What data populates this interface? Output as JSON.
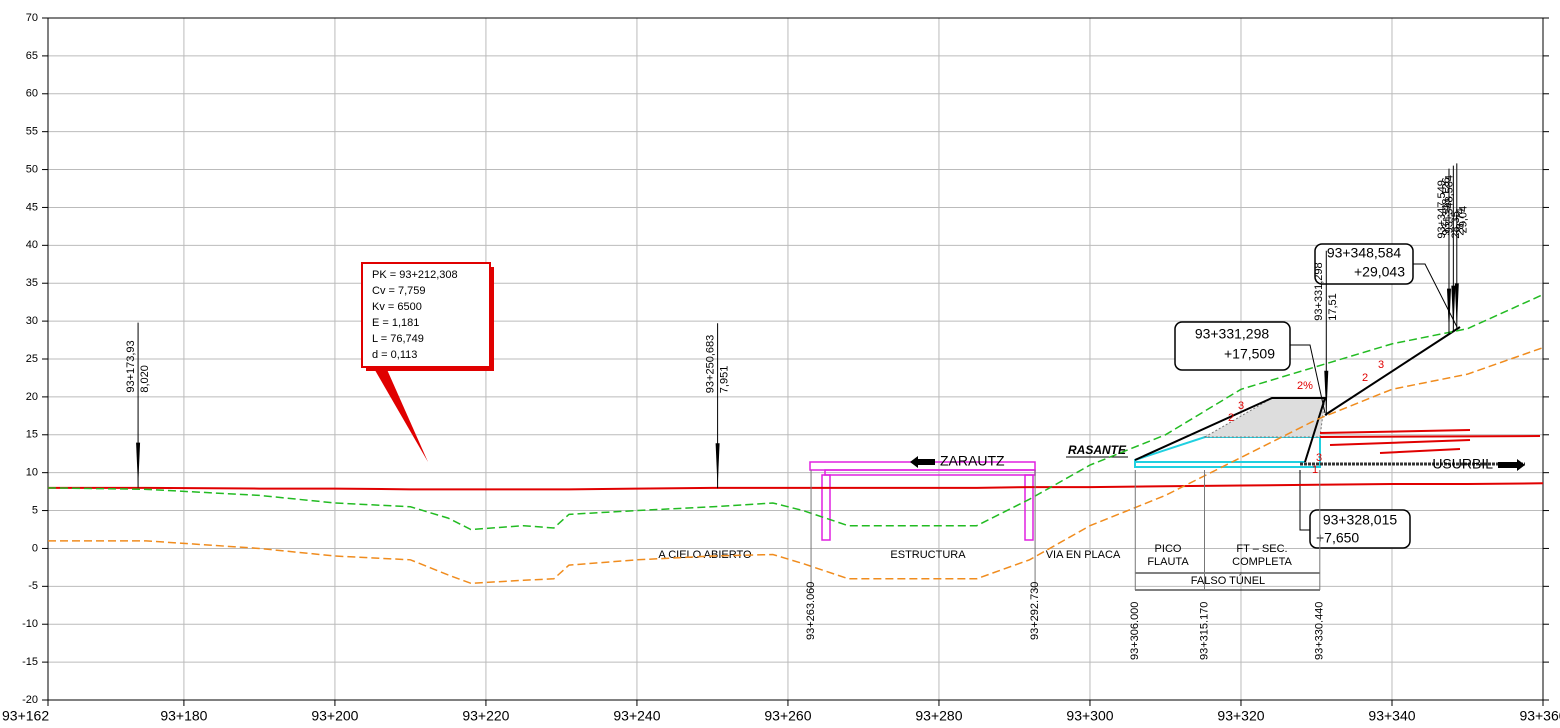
{
  "chart_data": {
    "type": "line",
    "x": [
      93162,
      93175,
      93190,
      93200,
      93210,
      93215,
      93218,
      93225,
      93229,
      93231,
      93240,
      93250,
      93258,
      93262,
      93268,
      93285,
      93292,
      93300,
      93310,
      93320,
      93330,
      93340,
      93350,
      93360
    ],
    "series": [
      {
        "color": "#e00000",
        "style": "solid",
        "values": [
          8,
          8,
          7.9,
          7.9,
          7.8,
          7.8,
          7.8,
          7.8,
          7.8,
          7.8,
          7.9,
          8,
          8,
          8,
          8,
          8,
          8.1,
          8.1,
          8.2,
          8.3,
          8.4,
          8.5,
          8.5,
          8.6
        ]
      },
      {
        "color": "#22bb22",
        "style": "dashed",
        "values": [
          8,
          7.8,
          7,
          6,
          5.5,
          4,
          2.5,
          3,
          2.7,
          4.5,
          5,
          5.5,
          6,
          5,
          3,
          3,
          6.5,
          11,
          15,
          21,
          24,
          27,
          29,
          33.5
        ]
      },
      {
        "color": "#f08c1e",
        "style": "dashed",
        "values": [
          1,
          1,
          0,
          -1,
          -1.5,
          -3.5,
          -4.6,
          -4.2,
          -4,
          -2.2,
          -1.5,
          -1,
          -0.8,
          -2,
          -4,
          -4,
          -1.5,
          3,
          7,
          12,
          17,
          21,
          23,
          26.5
        ]
      }
    ],
    "xlim": [
      93162,
      93360
    ],
    "ylim": [
      -20,
      70
    ],
    "xticks": [
      {
        "value": 93162,
        "label": "93+162"
      },
      {
        "value": 93180,
        "label": "93+180"
      },
      {
        "value": 93200,
        "label": "93+200"
      },
      {
        "value": 93220,
        "label": "93+220"
      },
      {
        "value": 93240,
        "label": "93+240"
      },
      {
        "value": 93260,
        "label": "93+260"
      },
      {
        "value": 93280,
        "label": "93+280"
      },
      {
        "value": 93300,
        "label": "93+300"
      },
      {
        "value": 93320,
        "label": "93+320"
      },
      {
        "value": 93340,
        "label": "93+340"
      },
      {
        "value": 93360,
        "label": "93+360"
      }
    ],
    "yticks": [
      -20,
      -15,
      -10,
      -5,
      0,
      5,
      10,
      15,
      20,
      25,
      30,
      35,
      40,
      45,
      50,
      55,
      60,
      65,
      70
    ],
    "grid": true,
    "markers": [
      {
        "x": 93173.93,
        "elev": 8.02,
        "label": "93+173,93",
        "elev_label": "8,020"
      },
      {
        "x": 93250.683,
        "elev": 7.951,
        "label": "93+250,683",
        "elev_label": "7,951"
      },
      {
        "x": 93331.298,
        "elev": 17.51,
        "label": "93+331,298",
        "elev_label": "17,51"
      },
      {
        "x": 93347.549,
        "elev": 28.35,
        "label": "93+347,549",
        "elev_label": "28,35"
      },
      {
        "x": 93348.126,
        "elev": 28.74,
        "label": "93+348,126",
        "elev_label": "28,74"
      },
      {
        "x": 93348.584,
        "elev": 29.04,
        "label": "93+348,584",
        "elev_label": "29,04"
      }
    ],
    "stations": [
      {
        "x": 93263.06,
        "label": "93+263.060"
      },
      {
        "x": 93292.73,
        "label": "93+292.730"
      },
      {
        "x": 93306,
        "label": "93+306.000"
      },
      {
        "x": 93315.17,
        "label": "93+315.170"
      },
      {
        "x": 93330.44,
        "label": "93+330.440"
      }
    ],
    "vertical_curve": [
      "PK = 93+212,308",
      "Cv = 7,759",
      "Kv = 6500",
      "E = 1,181",
      "L = 76,749",
      "d = 0,113"
    ],
    "callouts": [
      [
        "93+331,298",
        "+17,509"
      ],
      [
        "93+348,584",
        "+29,043"
      ],
      [
        "93+328,015",
        "+7,650"
      ]
    ],
    "sections": [
      "A CIELO ABIERTO",
      "ESTRUCTURA",
      "VIA EN PLACA",
      "PICO",
      "FLAUTA",
      "FT  –  SEC.",
      "COMPLETA",
      "FALSO TÚNEL"
    ],
    "directions": [
      "ZARAUTZ",
      "USURBIL"
    ],
    "rasante": "RASANTE",
    "slopes": [
      "3",
      "2",
      "2%",
      "3",
      "2",
      "3",
      "1"
    ]
  }
}
